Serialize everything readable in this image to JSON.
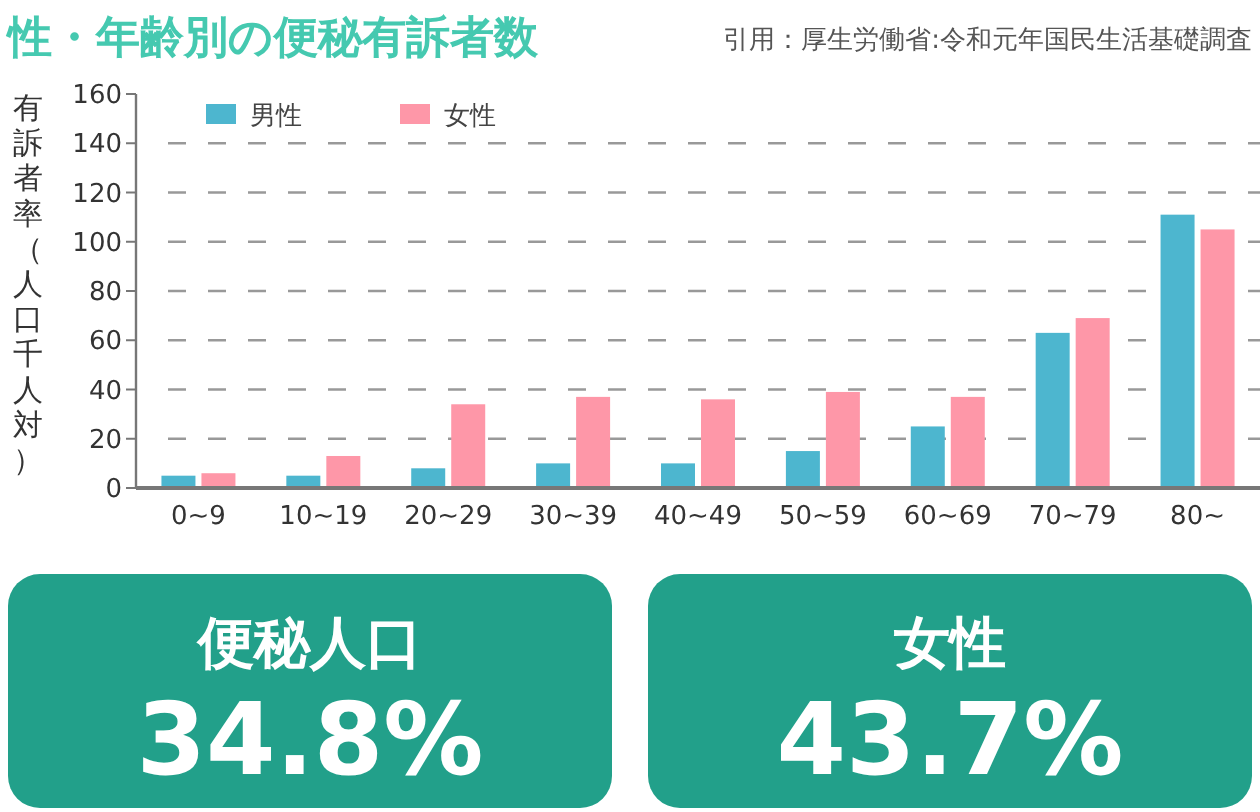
{
  "chart_data": [
    {
      "type": "bar",
      "title": "性・年齢別の便秘有訴者数",
      "annotations": [
        "引用：厚生労働省:令和元年国民生活基礎調査"
      ],
      "ylabel": "有訴者率（人口千人対）",
      "categories": [
        "0~9",
        "10~19",
        "20~29",
        "30~39",
        "40~49",
        "50~59",
        "60~69",
        "70~79",
        "80~"
      ],
      "series": [
        {
          "name": "男性",
          "color": "#4db6cf",
          "values": [
            5,
            5,
            8,
            10,
            10,
            15,
            25,
            63,
            111
          ]
        },
        {
          "name": "女性",
          "color": "#fe97a8",
          "values": [
            6,
            13,
            34,
            37,
            36,
            39,
            37,
            69,
            105
          ]
        }
      ],
      "ylim": [
        0,
        160
      ],
      "yticks": [
        0,
        20,
        40,
        60,
        80,
        100,
        120,
        140,
        160
      ],
      "grid": "y",
      "legend": "top left"
    },
    {
      "type": "other",
      "title": "便秘人口",
      "annotations": [
        "34.8%"
      ]
    },
    {
      "type": "other",
      "title": "女性",
      "annotations": [
        "43.7%"
      ]
    }
  ]
}
